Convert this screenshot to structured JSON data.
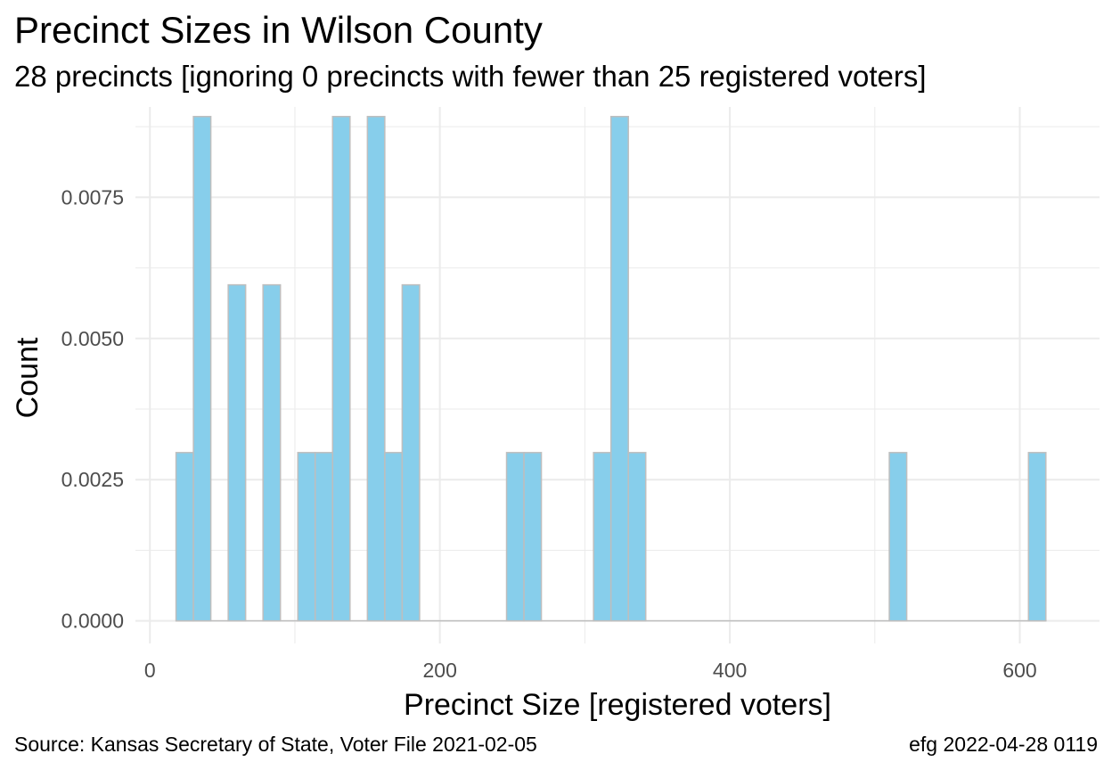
{
  "title": "Precinct Sizes in Wilson County",
  "subtitle": "28 precincts [ignoring 0 precincts with fewer than 25 registered voters]",
  "caption_left": "Source:  Kansas Secretary of State, Voter File  2021-02-05",
  "caption_right": "efg 2022-04-28 0119",
  "chart_data": {
    "type": "bar",
    "xlabel": "Precinct Size [registered voters]",
    "ylabel": "Count",
    "xlim": [
      -10,
      655
    ],
    "ylim": [
      -0.0004,
      0.0091
    ],
    "x_ticks": [
      0,
      200,
      400,
      600
    ],
    "x_tick_labels": [
      "0",
      "200",
      "400",
      "600"
    ],
    "y_ticks": [
      0,
      0.0025,
      0.005,
      0.0075
    ],
    "y_tick_labels": [
      "0.0000",
      "0.0025",
      "0.0050",
      "0.0075"
    ],
    "grid": true,
    "bin_width": 12,
    "bins": [
      {
        "x0": 18,
        "x1": 30,
        "value": 0.00298
      },
      {
        "x0": 30,
        "x1": 42,
        "value": 0.00893
      },
      {
        "x0": 54,
        "x1": 66,
        "value": 0.00595
      },
      {
        "x0": 78,
        "x1": 90,
        "value": 0.00595
      },
      {
        "x0": 102,
        "x1": 114,
        "value": 0.00298
      },
      {
        "x0": 114,
        "x1": 126,
        "value": 0.00298
      },
      {
        "x0": 126,
        "x1": 138,
        "value": 0.00893
      },
      {
        "x0": 150,
        "x1": 162,
        "value": 0.00893
      },
      {
        "x0": 162,
        "x1": 174,
        "value": 0.00298
      },
      {
        "x0": 174,
        "x1": 186,
        "value": 0.00595
      },
      {
        "x0": 246,
        "x1": 258,
        "value": 0.00298
      },
      {
        "x0": 258,
        "x1": 270,
        "value": 0.00298
      },
      {
        "x0": 306,
        "x1": 318,
        "value": 0.00298
      },
      {
        "x0": 318,
        "x1": 330,
        "value": 0.00893
      },
      {
        "x0": 330,
        "x1": 342,
        "value": 0.00298
      },
      {
        "x0": 510,
        "x1": 522,
        "value": 0.00298
      },
      {
        "x0": 606,
        "x1": 618,
        "value": 0.00298
      }
    ],
    "fill_color": "#87ceeb",
    "edge_color": "#bebebe",
    "grid_color": "#ebebeb"
  }
}
